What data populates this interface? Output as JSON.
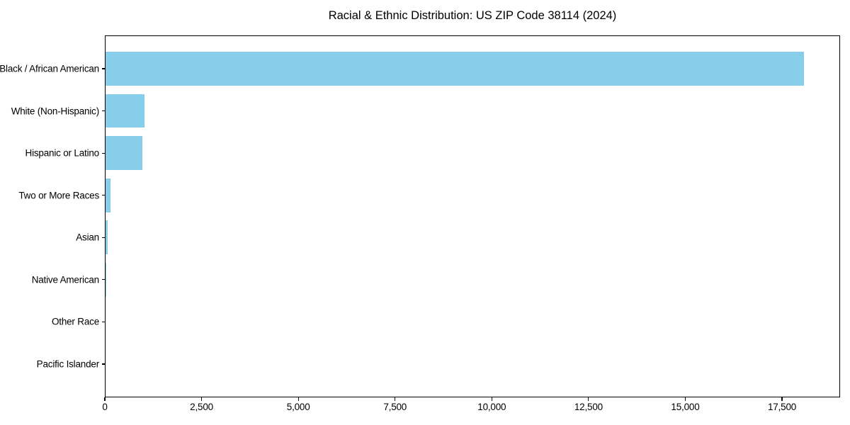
{
  "figure": {
    "background": "#ffffff",
    "text_color": "#000000"
  },
  "chart_data": {
    "type": "bar",
    "orientation": "horizontal",
    "title": "Racial & Ethnic Distribution: US ZIP Code 38114 (2024)",
    "categories": [
      "Black / African American",
      "White (Non-Hispanic)",
      "Hispanic or Latino",
      "Two or More Races",
      "Asian",
      "Native American",
      "Other Race",
      "Pacific Islander"
    ],
    "values": [
      18070,
      1020,
      970,
      150,
      80,
      20,
      10,
      0
    ],
    "xlabel": "",
    "ylabel": "",
    "xlim": [
      0,
      19000
    ],
    "xticks": [
      0,
      2500,
      5000,
      7500,
      10000,
      12500,
      15000,
      17500
    ],
    "xtick_labels": [
      "0",
      "2,500",
      "5,000",
      "7,500",
      "10,000",
      "12,500",
      "15,000",
      "17,500"
    ],
    "bar_color": "#87CEEB",
    "grid": false,
    "legend": null
  }
}
